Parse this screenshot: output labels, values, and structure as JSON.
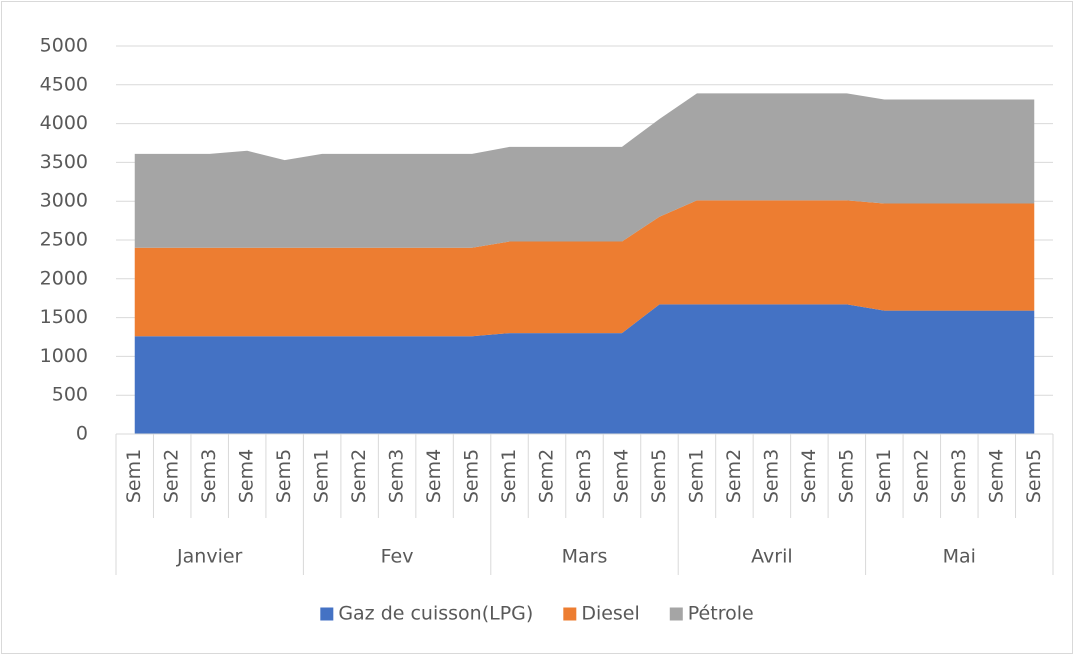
{
  "chart_data": {
    "type": "stacked_area",
    "groups": [
      "Janvier",
      "Fev",
      "Mars",
      "Avril",
      "Mai"
    ],
    "categories": [
      "Sem1",
      "Sem2",
      "Sem3",
      "Sem4",
      "Sem5",
      "Sem1",
      "Sem2",
      "Sem3",
      "Sem4",
      "Sem5",
      "Sem1",
      "Sem2",
      "Sem3",
      "Sem4",
      "Sem5",
      "Sem1",
      "Sem2",
      "Sem3",
      "Sem4",
      "Sem5",
      "Sem1",
      "Sem2",
      "Sem3",
      "Sem4",
      "Sem5"
    ],
    "series": [
      {
        "name": "Gaz de cuisson(LPG)",
        "color": "#4472c4",
        "values": [
          1260,
          1260,
          1260,
          1260,
          1260,
          1260,
          1260,
          1260,
          1260,
          1260,
          1300,
          1300,
          1300,
          1300,
          1670,
          1670,
          1670,
          1670,
          1670,
          1670,
          1590,
          1590,
          1590,
          1590,
          1590
        ]
      },
      {
        "name": "Diesel",
        "color": "#ed7d31",
        "values": [
          1140,
          1140,
          1140,
          1140,
          1140,
          1140,
          1140,
          1140,
          1140,
          1140,
          1180,
          1180,
          1180,
          1180,
          1130,
          1340,
          1340,
          1340,
          1340,
          1340,
          1380,
          1380,
          1380,
          1380,
          1380
        ]
      },
      {
        "name": "Pétrole",
        "color": "#a5a5a5",
        "values": [
          1210,
          1210,
          1210,
          1250,
          1130,
          1210,
          1210,
          1210,
          1210,
          1210,
          1220,
          1220,
          1220,
          1220,
          1260,
          1380,
          1380,
          1380,
          1380,
          1380,
          1340,
          1340,
          1340,
          1340,
          1340
        ]
      }
    ],
    "ylim": [
      0,
      5000
    ],
    "yticks": [
      0,
      500,
      1000,
      1500,
      2000,
      2500,
      3000,
      3500,
      4000,
      4500,
      5000
    ],
    "grid": true,
    "legend": "bottom"
  }
}
